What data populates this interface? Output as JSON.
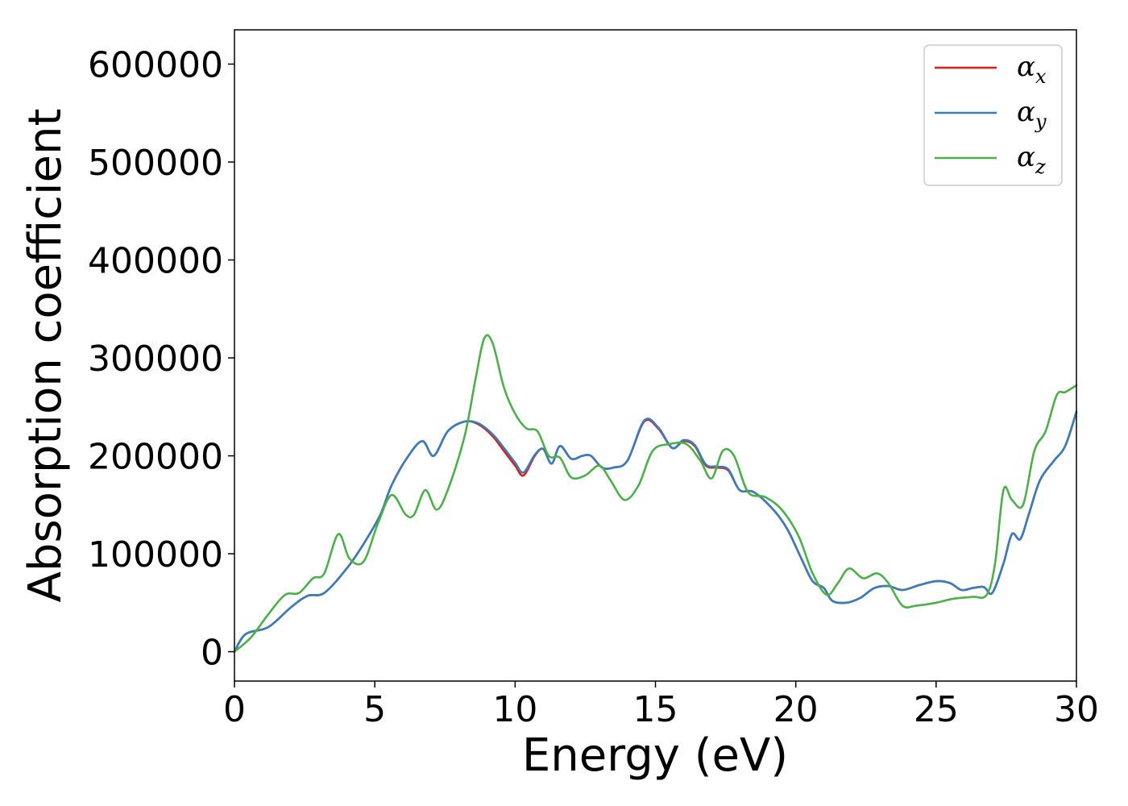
{
  "chart_data": {
    "type": "line",
    "xlabel": "Energy (eV)",
    "ylabel": "Absorption coefficient",
    "xlim": [
      0,
      30
    ],
    "ylim": [
      -30000,
      635000
    ],
    "xticks": [
      0,
      5,
      10,
      15,
      20,
      25,
      30
    ],
    "yticks": [
      0,
      100000,
      200000,
      300000,
      400000,
      500000,
      600000
    ],
    "grid": false,
    "legend_position": "top-right",
    "series": [
      {
        "name": "α_x",
        "base": "α",
        "sub": "x",
        "color": "#e41a1c",
        "x": [
          0,
          0.4,
          1.2,
          2,
          2.6,
          3.2,
          4,
          4.6,
          5.2,
          5.6,
          6.2,
          6.7,
          7.1,
          7.6,
          8.2,
          8.7,
          9.2,
          9.6,
          10,
          10.3,
          10.7,
          11,
          11.3,
          11.6,
          12,
          12.4,
          12.7,
          13.1,
          13.5,
          14,
          14.6,
          15.1,
          15.6,
          16,
          16.4,
          16.8,
          17.2,
          17.6,
          18,
          18.5,
          19.2,
          19.7,
          20.2,
          20.6,
          21,
          21.3,
          21.8,
          22.3,
          22.8,
          23.3,
          23.8,
          24.4,
          25,
          25.5,
          25.9,
          26.3,
          26.7,
          27,
          27.4,
          27.7,
          28,
          28.3,
          28.7,
          29.2,
          29.6,
          30
        ],
        "y": [
          0,
          18000,
          25000,
          45000,
          57000,
          60000,
          85000,
          110000,
          140000,
          170000,
          200000,
          215000,
          200000,
          225000,
          235000,
          232000,
          220000,
          205000,
          190000,
          180000,
          200000,
          207000,
          192000,
          210000,
          197000,
          200000,
          200000,
          188000,
          188000,
          195000,
          235000,
          228000,
          208000,
          215000,
          210000,
          190000,
          188000,
          185000,
          165000,
          163000,
          145000,
          125000,
          95000,
          72000,
          65000,
          52000,
          50000,
          55000,
          65000,
          67000,
          63000,
          68000,
          72000,
          70000,
          63000,
          65000,
          66000,
          60000,
          90000,
          120000,
          115000,
          140000,
          175000,
          195000,
          210000,
          245000
        ]
      },
      {
        "name": "α_y",
        "base": "α",
        "sub": "y",
        "color": "#377eb8",
        "x": [
          0,
          0.4,
          1.2,
          2,
          2.6,
          3.2,
          4,
          4.6,
          5.2,
          5.6,
          6.2,
          6.7,
          7.1,
          7.6,
          8.2,
          8.7,
          9.2,
          9.6,
          10,
          10.3,
          10.7,
          11,
          11.3,
          11.6,
          12,
          12.4,
          12.7,
          13.1,
          13.5,
          14,
          14.6,
          15.1,
          15.6,
          16,
          16.4,
          16.8,
          17.2,
          17.6,
          18,
          18.5,
          19.2,
          19.7,
          20.2,
          20.6,
          21,
          21.3,
          21.8,
          22.3,
          22.8,
          23.3,
          23.8,
          24.4,
          25,
          25.5,
          25.9,
          26.3,
          26.7,
          27,
          27.4,
          27.7,
          28,
          28.3,
          28.7,
          29.2,
          29.6,
          30
        ],
        "y": [
          0,
          18000,
          25000,
          45000,
          57000,
          60000,
          85000,
          110000,
          140000,
          170000,
          200000,
          215000,
          200000,
          225000,
          235000,
          233000,
          222000,
          208000,
          193000,
          183000,
          201000,
          207000,
          192000,
          210000,
          197000,
          200000,
          200000,
          188000,
          188000,
          195000,
          236000,
          229000,
          208000,
          216000,
          211000,
          191000,
          189000,
          186000,
          165000,
          163000,
          145000,
          125000,
          95000,
          72000,
          65000,
          52000,
          50000,
          55000,
          65000,
          67000,
          63000,
          68000,
          72000,
          70000,
          63000,
          65000,
          66000,
          60000,
          90000,
          120000,
          115000,
          140000,
          175000,
          195000,
          210000,
          245000
        ]
      },
      {
        "name": "α_z",
        "base": "α",
        "sub": "z",
        "color": "#4daf4a",
        "x": [
          0,
          0.6,
          1.2,
          1.8,
          2.3,
          2.8,
          3.2,
          3.7,
          4.1,
          4.6,
          5.1,
          5.6,
          6.1,
          6.4,
          6.8,
          7.2,
          7.6,
          8.2,
          8.6,
          8.9,
          9.2,
          9.6,
          10,
          10.4,
          10.8,
          11.2,
          11.6,
          12,
          12.5,
          13,
          13.4,
          13.9,
          14.4,
          14.9,
          15.5,
          16.1,
          16.6,
          17.0,
          17.4,
          17.8,
          18.3,
          18.9,
          19.5,
          20.1,
          20.6,
          21.1,
          21.5,
          21.9,
          22.4,
          22.9,
          23.3,
          23.8,
          24.3,
          25,
          25.6,
          26.3,
          26.8,
          27.1,
          27.4,
          27.7,
          28.1,
          28.5,
          28.9,
          29.3,
          29.6,
          30
        ],
        "y": [
          0,
          15000,
          38000,
          58000,
          60000,
          75000,
          80000,
          120000,
          95000,
          92000,
          130000,
          160000,
          140000,
          140000,
          165000,
          145000,
          165000,
          220000,
          280000,
          320000,
          315000,
          270000,
          243000,
          228000,
          225000,
          200000,
          198000,
          178000,
          180000,
          190000,
          175000,
          155000,
          170000,
          205000,
          212000,
          212000,
          195000,
          177000,
          205000,
          200000,
          163000,
          158000,
          145000,
          118000,
          80000,
          58000,
          70000,
          85000,
          75000,
          80000,
          70000,
          47000,
          47000,
          50000,
          54000,
          56000,
          58000,
          90000,
          165000,
          155000,
          150000,
          205000,
          225000,
          262000,
          265000,
          272000
        ]
      }
    ]
  }
}
